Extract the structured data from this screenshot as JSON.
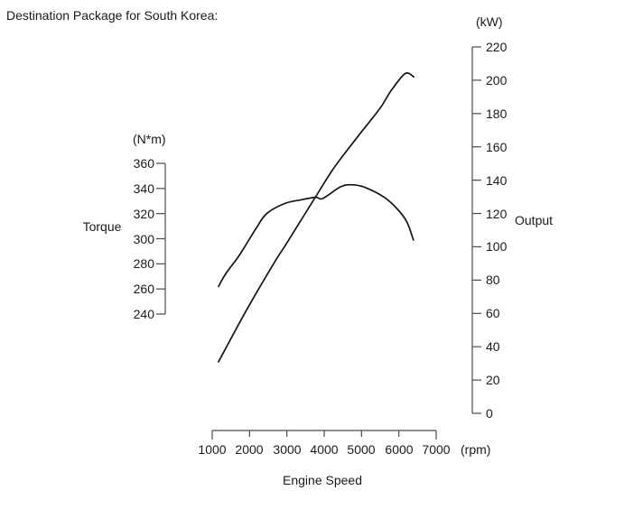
{
  "page": {
    "title": "Destination Package for South Korea:"
  },
  "colors": {
    "background": "#ffffff",
    "text": "#1a1a1a",
    "axis": "#4a4a4a",
    "curve": "#141414"
  },
  "chart_data": {
    "type": "line",
    "title": "Destination Package for South Korea:",
    "grid": false,
    "legend": "none",
    "x_axis": {
      "label": "Engine Speed",
      "unit": "(rpm)",
      "range": [
        1000,
        7000
      ],
      "ticks": [
        1000,
        2000,
        3000,
        4000,
        5000,
        6000,
        7000
      ]
    },
    "left_axis": {
      "label": "Torque",
      "unit": "(N*m)",
      "range": [
        240,
        360
      ],
      "ticks": [
        360,
        340,
        320,
        300,
        280,
        260,
        240
      ]
    },
    "right_axis": {
      "label": "Output",
      "unit": "(kW)",
      "range": [
        0,
        220
      ],
      "ticks": [
        220,
        200,
        180,
        160,
        140,
        120,
        100,
        80,
        60,
        40,
        20,
        0
      ]
    },
    "series": [
      {
        "name": "torque",
        "axis": "left",
        "x": [
          1170,
          1360,
          1730,
          2170,
          2460,
          2940,
          3380,
          3770,
          3960,
          4420,
          4710,
          5080,
          5610,
          5980,
          6220,
          6390
        ],
        "values": [
          262,
          272,
          287,
          308,
          320,
          328,
          331,
          333,
          332,
          341,
          343,
          341,
          333,
          323,
          313,
          299
        ]
      },
      {
        "name": "output",
        "axis": "right",
        "x": [
          1170,
          1920,
          2650,
          2990,
          3770,
          4280,
          4930,
          5490,
          5800,
          6170,
          6400
        ],
        "values": [
          31,
          62,
          90,
          102,
          130,
          148,
          167,
          183,
          194,
          204,
          202
        ]
      }
    ]
  }
}
